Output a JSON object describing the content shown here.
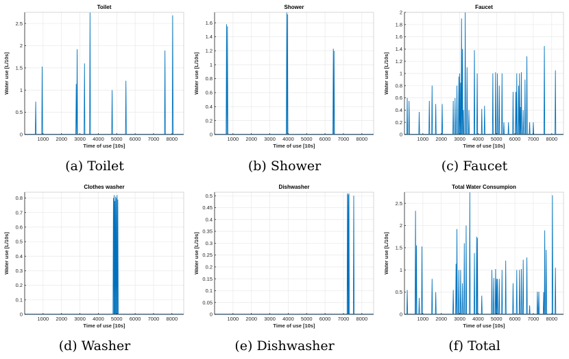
{
  "chart_data": [
    {
      "id": "toilet",
      "type": "line",
      "caption": "(a) Toilet",
      "title": "Toilet",
      "xlabel": "Time of use [10s]",
      "ylabel": "Water use [L/10s]",
      "xlim": [
        0,
        8640
      ],
      "ylim": [
        0,
        2.75
      ],
      "xticks": [
        1000,
        2000,
        3000,
        4000,
        5000,
        6000,
        7000,
        8000
      ],
      "yticks": [
        0,
        0.5,
        1,
        1.5,
        2,
        2.5
      ],
      "ytick_labels": [
        "0",
        "0.5",
        "1",
        "1.5",
        "2",
        "2.5"
      ],
      "color": "#0072bd",
      "spikes": [
        [
          600,
          0.74
        ],
        [
          950,
          1.53
        ],
        [
          2800,
          1.14
        ],
        [
          2850,
          1.92
        ],
        [
          3250,
          1.6
        ],
        [
          3550,
          2.75
        ],
        [
          4750,
          1.0
        ],
        [
          5500,
          1.21
        ],
        [
          7620,
          1.89
        ],
        [
          8040,
          2.68
        ]
      ]
    },
    {
      "id": "shower",
      "type": "line",
      "caption": "(b) Shower",
      "title": "Shower",
      "xlabel": "Time of use [10s]",
      "ylabel": "Water use [L/10s]",
      "xlim": [
        0,
        8640
      ],
      "ylim": [
        0,
        1.75
      ],
      "xticks": [
        1000,
        2000,
        3000,
        4000,
        5000,
        6000,
        7000,
        8000
      ],
      "yticks": [
        0,
        0.2,
        0.4,
        0.6,
        0.8,
        1,
        1.2,
        1.4,
        1.6
      ],
      "ytick_labels": [
        "0",
        "0.2",
        "0.4",
        "0.6",
        "0.8",
        "1",
        "1.2",
        "1.4",
        "1.6"
      ],
      "color": "#0072bd",
      "spikes": [
        [
          650,
          1.58
        ],
        [
          700,
          1.55
        ],
        [
          3920,
          1.75
        ],
        [
          3960,
          1.72
        ],
        [
          6450,
          1.23
        ],
        [
          6490,
          1.2
        ]
      ]
    },
    {
      "id": "faucet",
      "type": "line",
      "caption": "(c) Faucet",
      "title": "Faucet",
      "xlabel": "Time of use [10s]",
      "ylabel": "Water use [L/10s]",
      "xlim": [
        0,
        8640
      ],
      "ylim": [
        0,
        2
      ],
      "xticks": [
        1000,
        2000,
        3000,
        4000,
        5000,
        6000,
        7000,
        8000
      ],
      "yticks": [
        0,
        0.2,
        0.4,
        0.6,
        0.8,
        1,
        1.2,
        1.4,
        1.6,
        1.8,
        2
      ],
      "ytick_labels": [
        "0",
        "0.2",
        "0.4",
        "0.6",
        "0.8",
        "1",
        "1.2",
        "1.4",
        "1.6",
        "1.8",
        "2"
      ],
      "color": "#0072bd",
      "spikes": [
        [
          150,
          0.6
        ],
        [
          250,
          0.55
        ],
        [
          800,
          0.37
        ],
        [
          1350,
          0.55
        ],
        [
          1500,
          0.8
        ],
        [
          1700,
          0.5
        ],
        [
          2050,
          0.5
        ],
        [
          2650,
          0.55
        ],
        [
          2750,
          0.6
        ],
        [
          2850,
          0.8
        ],
        [
          2950,
          0.95
        ],
        [
          3000,
          1.0
        ],
        [
          3050,
          0.85
        ],
        [
          3100,
          1.9
        ],
        [
          3150,
          1.4
        ],
        [
          3200,
          0.4
        ],
        [
          3300,
          2.0
        ],
        [
          3400,
          1.1
        ],
        [
          3500,
          0.4
        ],
        [
          3800,
          1.38
        ],
        [
          3950,
          1.0
        ],
        [
          4200,
          0.42
        ],
        [
          4350,
          0.47
        ],
        [
          4800,
          1.0
        ],
        [
          4950,
          1.02
        ],
        [
          5050,
          1.0
        ],
        [
          5150,
          0.8
        ],
        [
          5300,
          1.0
        ],
        [
          5400,
          0.2
        ],
        [
          5650,
          0.2
        ],
        [
          5900,
          0.7
        ],
        [
          6050,
          0.7
        ],
        [
          6100,
          1.0
        ],
        [
          6200,
          0.8
        ],
        [
          6250,
          1.0
        ],
        [
          6300,
          0.45
        ],
        [
          6350,
          1.02
        ],
        [
          6450,
          0.4
        ],
        [
          6550,
          0.9
        ],
        [
          6650,
          1.28
        ],
        [
          6800,
          0.2
        ],
        [
          7000,
          0.2
        ],
        [
          7600,
          1.45
        ],
        [
          8200,
          1.05
        ]
      ]
    },
    {
      "id": "washer",
      "type": "line",
      "caption": "(d) Washer",
      "title": "Clothes washer",
      "xlabel": "Time of use [10s]",
      "ylabel": "Water use [L/10s]",
      "xlim": [
        0,
        8640
      ],
      "ylim": [
        0,
        0.84
      ],
      "xticks": [
        1000,
        2000,
        3000,
        4000,
        5000,
        6000,
        7000,
        8000
      ],
      "yticks": [
        0,
        0.1,
        0.2,
        0.3,
        0.4,
        0.5,
        0.6,
        0.7,
        0.8
      ],
      "ytick_labels": [
        "0",
        "0.1",
        "0.2",
        "0.3",
        "0.4",
        "0.5",
        "0.6",
        "0.7",
        "0.8"
      ],
      "color": "#0072bd",
      "spikes": [
        [
          4820,
          0.8
        ],
        [
          4860,
          0.82
        ],
        [
          4900,
          0.78
        ],
        [
          4940,
          0.81
        ],
        [
          4980,
          0.8
        ],
        [
          5020,
          0.82
        ],
        [
          5060,
          0.79
        ]
      ]
    },
    {
      "id": "dishwasher",
      "type": "line",
      "caption": "(e) Dishwasher",
      "title": "Dishwasher",
      "xlabel": "Time of use [10s]",
      "ylabel": "Water use [L/10s]",
      "xlim": [
        0,
        8640
      ],
      "ylim": [
        0,
        0.515
      ],
      "xticks": [
        1000,
        2000,
        3000,
        4000,
        5000,
        6000,
        7000,
        8000
      ],
      "yticks": [
        0,
        0.05,
        0.1,
        0.15,
        0.2,
        0.25,
        0.3,
        0.35,
        0.4,
        0.45,
        0.5
      ],
      "ytick_labels": [
        "0",
        "0.05",
        "0.1",
        "0.15",
        "0.2",
        "0.25",
        "0.3",
        "0.35",
        "0.4",
        "0.45",
        "0.5"
      ],
      "color": "#0072bd",
      "spikes": [
        [
          7220,
          0.51
        ],
        [
          7260,
          0.505
        ],
        [
          7300,
          0.51
        ],
        [
          7560,
          0.5
        ]
      ]
    },
    {
      "id": "total",
      "type": "line",
      "caption": "(f) Total",
      "title": "Total Water Consumpion",
      "xlabel": "Time of use [10s]",
      "ylabel": "Water use [L/10s]",
      "xlim": [
        0,
        8640
      ],
      "ylim": [
        0,
        2.75
      ],
      "xticks": [
        1000,
        2000,
        3000,
        4000,
        5000,
        6000,
        7000,
        8000
      ],
      "yticks": [
        0,
        0.5,
        1,
        1.5,
        2,
        2.5
      ],
      "ytick_labels": [
        "0",
        "0.5",
        "1",
        "1.5",
        "2",
        "2.5"
      ],
      "color": "#0072bd",
      "spikes": [
        [
          150,
          0.55
        ],
        [
          600,
          2.33
        ],
        [
          650,
          1.55
        ],
        [
          800,
          0.37
        ],
        [
          950,
          1.53
        ],
        [
          1500,
          0.8
        ],
        [
          1700,
          0.5
        ],
        [
          2650,
          0.55
        ],
        [
          2800,
          1.14
        ],
        [
          2850,
          1.92
        ],
        [
          2950,
          1.0
        ],
        [
          3050,
          1.0
        ],
        [
          3150,
          0.7
        ],
        [
          3250,
          1.6
        ],
        [
          3350,
          2.0
        ],
        [
          3550,
          2.75
        ],
        [
          3800,
          1.38
        ],
        [
          3920,
          1.75
        ],
        [
          3960,
          1.72
        ],
        [
          4200,
          0.42
        ],
        [
          4750,
          1.0
        ],
        [
          4850,
          0.82
        ],
        [
          4950,
          1.02
        ],
        [
          5000,
          0.8
        ],
        [
          5050,
          0.8
        ],
        [
          5150,
          0.8
        ],
        [
          5300,
          1.0
        ],
        [
          5500,
          1.21
        ],
        [
          5900,
          0.7
        ],
        [
          6100,
          1.0
        ],
        [
          6250,
          1.0
        ],
        [
          6350,
          1.02
        ],
        [
          6450,
          1.23
        ],
        [
          6650,
          1.28
        ],
        [
          6800,
          0.2
        ],
        [
          7220,
          0.51
        ],
        [
          7300,
          0.51
        ],
        [
          7560,
          0.5
        ],
        [
          7620,
          1.89
        ],
        [
          7700,
          1.45
        ],
        [
          8040,
          2.68
        ],
        [
          8200,
          1.05
        ]
      ]
    }
  ]
}
